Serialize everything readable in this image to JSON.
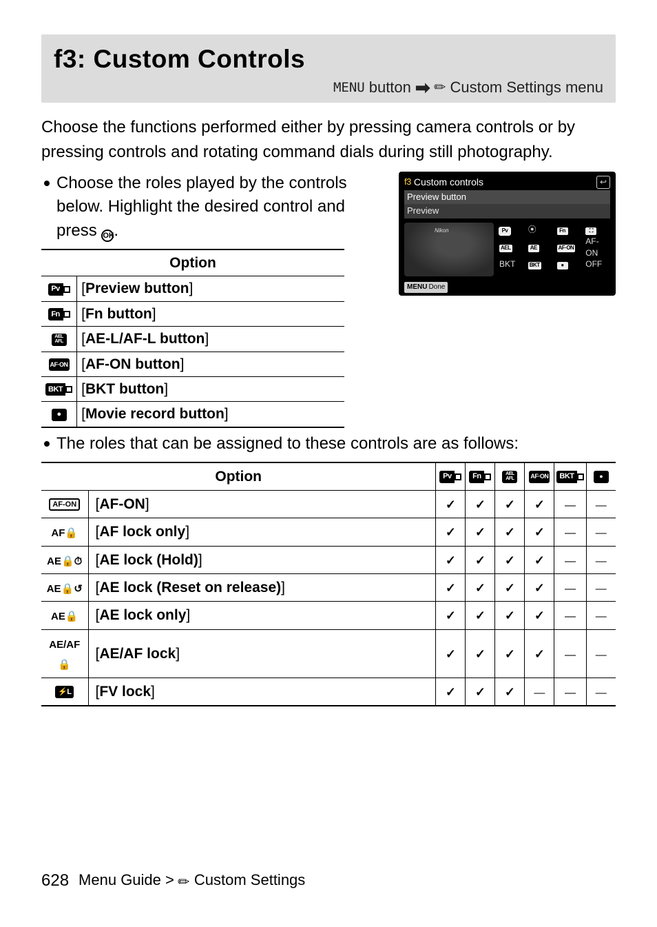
{
  "title": {
    "main": "f3: Custom Controls",
    "menu_label": "MENU",
    "button_word": "button",
    "breadcrumb": "Custom Settings menu"
  },
  "intro": "Choose the functions performed either by pressing camera controls or by pressing controls and rotating command dials during still photography.",
  "bullet1": "Choose the roles played by the controls below. Highlight the desired control and press ",
  "bullet1_after": ".",
  "option_header": "Option",
  "control_options": [
    {
      "glyph": "Pv",
      "glyph_class": "g-combo",
      "label": "[Preview button]"
    },
    {
      "glyph": "Fn",
      "glyph_class": "g-combo",
      "label": "[Fn button]"
    },
    {
      "glyph": "AEL\nAFL",
      "glyph_class": "g stack",
      "label": "[AE‑L/AF‑L button]"
    },
    {
      "glyph": "AF·ON",
      "glyph_class": "g tight",
      "label": "[AF‑ON button]"
    },
    {
      "glyph": "BKT",
      "glyph_class": "g-combo",
      "label": "[BKT button]"
    },
    {
      "glyph": "●",
      "glyph_class": "g",
      "label": "[Movie record button]"
    }
  ],
  "camera_screen": {
    "f3_label": "f3",
    "title": "Custom controls",
    "line1": "Preview button",
    "line2": "Preview",
    "brand": "Nikon",
    "grid": [
      "Pv",
      "⦿",
      "Fn",
      "⛶",
      "AEL",
      "AE",
      "AF·ON",
      "AF-ON",
      "BKT",
      "BKT",
      "●",
      "OFF"
    ],
    "done_icon": "MENU",
    "done_label": "Done"
  },
  "bullet2": "The roles that can be assigned to these controls are as follows:",
  "role_header": "Option",
  "role_columns": [
    "Pv",
    "Fn",
    "AEL",
    "AF·ON",
    "BKT",
    "●"
  ],
  "roles": [
    {
      "glyph": "AF-ON",
      "gclass": "g-outline",
      "label": "[AF‑ON]",
      "vals": [
        "c",
        "c",
        "c",
        "c",
        "d",
        "d"
      ]
    },
    {
      "glyph": "AF🔒",
      "gclass": "plain",
      "label": "[AF lock only]",
      "vals": [
        "c",
        "c",
        "c",
        "c",
        "d",
        "d"
      ]
    },
    {
      "glyph": "AE🔒⏱",
      "gclass": "plain",
      "label": "[AE lock (Hold)]",
      "vals": [
        "c",
        "c",
        "c",
        "c",
        "d",
        "d"
      ]
    },
    {
      "glyph": "AE🔒↺",
      "gclass": "plain",
      "label": "[AE lock (Reset on release)]",
      "vals": [
        "c",
        "c",
        "c",
        "c",
        "d",
        "d"
      ]
    },
    {
      "glyph": "AE🔒",
      "gclass": "plain",
      "label": "[AE lock only]",
      "vals": [
        "c",
        "c",
        "c",
        "c",
        "d",
        "d"
      ]
    },
    {
      "glyph": "AEAF🔒",
      "gclass": "plain",
      "label": "[AE/AF lock]",
      "vals": [
        "c",
        "c",
        "c",
        "c",
        "d",
        "d"
      ]
    },
    {
      "glyph": "⚡L",
      "gclass": "g",
      "label": "[FV lock]",
      "vals": [
        "c",
        "c",
        "c",
        "d",
        "d",
        "d"
      ]
    }
  ],
  "footer": {
    "page_number": "628",
    "guide": "Menu Guide",
    "section": "Custom Settings"
  }
}
